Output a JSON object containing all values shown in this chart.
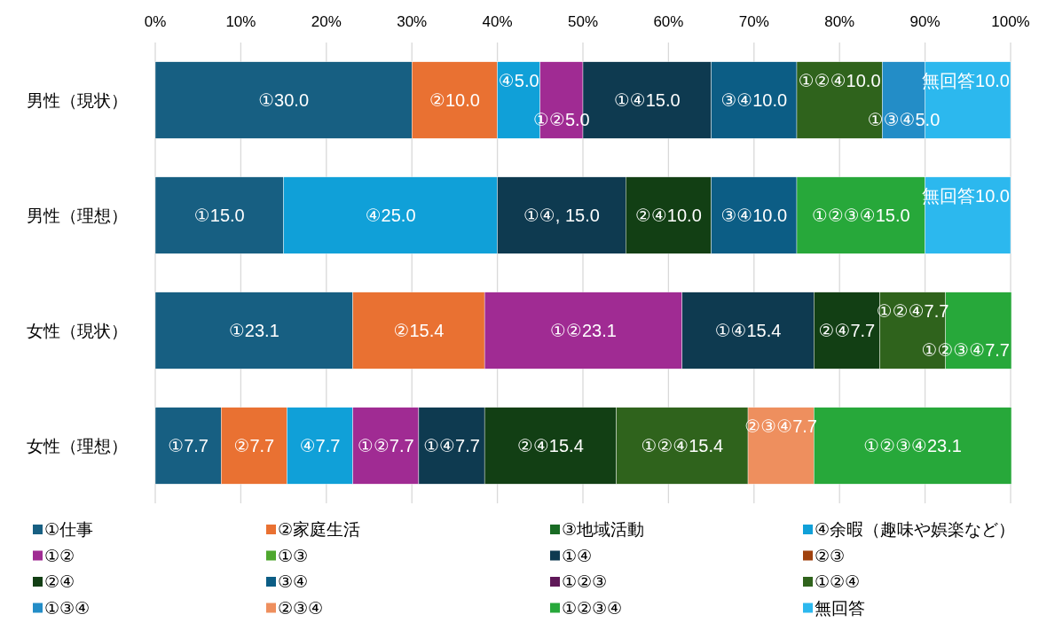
{
  "chart_data": {
    "type": "bar",
    "orientation": "horizontal",
    "stacked": true,
    "categories": [
      "男性（現状）",
      "男性（理想）",
      "女性（現状）",
      "女性（理想）"
    ],
    "xlim": [
      0,
      100
    ],
    "xticks": [
      {
        "value": 0,
        "label": "0%"
      },
      {
        "value": 10,
        "label": "10%"
      },
      {
        "value": 20,
        "label": "20%"
      },
      {
        "value": 30,
        "label": "30%"
      },
      {
        "value": 40,
        "label": "40%"
      },
      {
        "value": 50,
        "label": "50%"
      },
      {
        "value": 60,
        "label": "60%"
      },
      {
        "value": 70,
        "label": "70%"
      },
      {
        "value": 80,
        "label": "80%"
      },
      {
        "value": 90,
        "label": "90%"
      },
      {
        "value": 100,
        "label": "100%"
      }
    ],
    "grid": "x",
    "legend": "bottom",
    "series": [
      {
        "name": "①仕事",
        "color": "#175f82",
        "values": [
          30.0,
          15.0,
          23.1,
          7.7
        ],
        "value_labels": [
          "①30.0",
          "①15.0",
          "①23.1",
          "①7.7"
        ]
      },
      {
        "name": "②家庭生活",
        "color": "#e97132",
        "values": [
          10.0,
          null,
          15.4,
          7.7
        ],
        "value_labels": [
          "②10.0",
          null,
          "②15.4",
          "②7.7"
        ]
      },
      {
        "name": "③地域活動",
        "color": "#196b24",
        "values": [
          null,
          null,
          null,
          null
        ]
      },
      {
        "name": "④余暇（趣味や娯楽など）",
        "color": "#10a0d8",
        "values": [
          5.0,
          25.0,
          null,
          7.7
        ],
        "value_labels": [
          "④5.0",
          "④25.0",
          null,
          "④7.7"
        ]
      },
      {
        "name": "①②",
        "color": "#a02b93",
        "values": [
          5.0,
          null,
          23.1,
          7.7
        ],
        "value_labels": [
          "①②5.0",
          null,
          "①②23.1",
          "①②7.7"
        ]
      },
      {
        "name": "①③",
        "color": "#4ea72e",
        "values": [
          null,
          null,
          null,
          null
        ]
      },
      {
        "name": "①④",
        "color": "#0e3a50",
        "values": [
          15.0,
          15.0,
          15.4,
          7.7
        ],
        "value_labels": [
          "①④15.0",
          "①④, 15.0",
          "①④15.4",
          "①④7.7"
        ]
      },
      {
        "name": "②③",
        "color": "#a0410d",
        "values": [
          null,
          null,
          null,
          null
        ]
      },
      {
        "name": "②④",
        "color": "#123f14",
        "values": [
          null,
          10.0,
          7.7,
          15.4
        ],
        "value_labels": [
          null,
          "②④10.0",
          "②④7.7",
          "②④15.4"
        ]
      },
      {
        "name": "③④",
        "color": "#0c5d85",
        "values": [
          10.0,
          10.0,
          null,
          null
        ],
        "value_labels": [
          "③④10.0",
          "③④10.0",
          null,
          null
        ]
      },
      {
        "name": "①②③",
        "color": "#5f1858",
        "values": [
          null,
          null,
          null,
          null
        ]
      },
      {
        "name": "①②④",
        "color": "#2f631c",
        "values": [
          10.0,
          null,
          7.7,
          15.4
        ],
        "value_labels": [
          "①②④10.0",
          null,
          "①②④7.7",
          "①②④15.4"
        ]
      },
      {
        "name": "①③④",
        "color": "#238dc7",
        "values": [
          5.0,
          null,
          null,
          null
        ],
        "value_labels": [
          "①③④5.0",
          null,
          null,
          null
        ]
      },
      {
        "name": "②③④",
        "color": "#ee8f5e",
        "values": [
          null,
          null,
          null,
          7.7
        ],
        "value_labels": [
          null,
          null,
          null,
          "②③④7.7"
        ]
      },
      {
        "name": "①②③④",
        "color": "#27a83a",
        "values": [
          null,
          15.0,
          7.7,
          23.1
        ],
        "value_labels": [
          null,
          "①②③④15.0",
          "①②③④7.7",
          "①②③④23.1"
        ]
      },
      {
        "name": "無回答",
        "color": "#2cb8ee",
        "values": [
          10.0,
          10.0,
          null,
          null
        ],
        "value_labels": [
          "無回答10.0",
          "無回答10.0",
          null,
          null
        ]
      }
    ]
  }
}
